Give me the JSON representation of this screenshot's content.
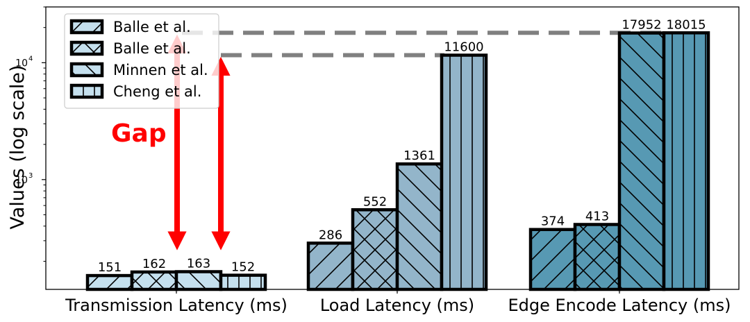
{
  "chart_data": {
    "type": "bar",
    "categories": [
      "Transmission Latency (ms)",
      "Load Latency (ms)",
      "Edge Encode Latency (ms)"
    ],
    "series": [
      {
        "name": "Balle et al.",
        "values": [
          151,
          286,
          374
        ],
        "hatch": "diag-up"
      },
      {
        "name": "Balle et al.",
        "values": [
          162,
          552,
          413
        ],
        "hatch": "cross"
      },
      {
        "name": "Minnen et al.",
        "values": [
          163,
          1361,
          17952
        ],
        "hatch": "diag-down"
      },
      {
        "name": "Cheng et al.",
        "values": [
          152,
          11600,
          18015
        ],
        "hatch": "vertical"
      }
    ],
    "category_colors": [
      "#c5e0ee",
      "#93b5ca",
      "#5799b3"
    ],
    "ylabel": "Values (log scale)",
    "yscale": "log",
    "ylim": [
      115,
      30000
    ],
    "yticks": [
      {
        "value": 1000,
        "base": "10",
        "exp": "3"
      },
      {
        "value": 10000,
        "base": "10",
        "exp": "4"
      }
    ],
    "legend_position": "top-left",
    "annotation": {
      "text": "Gap",
      "color": "#ff0000"
    },
    "reference_lines": [
      18015,
      11600
    ]
  }
}
